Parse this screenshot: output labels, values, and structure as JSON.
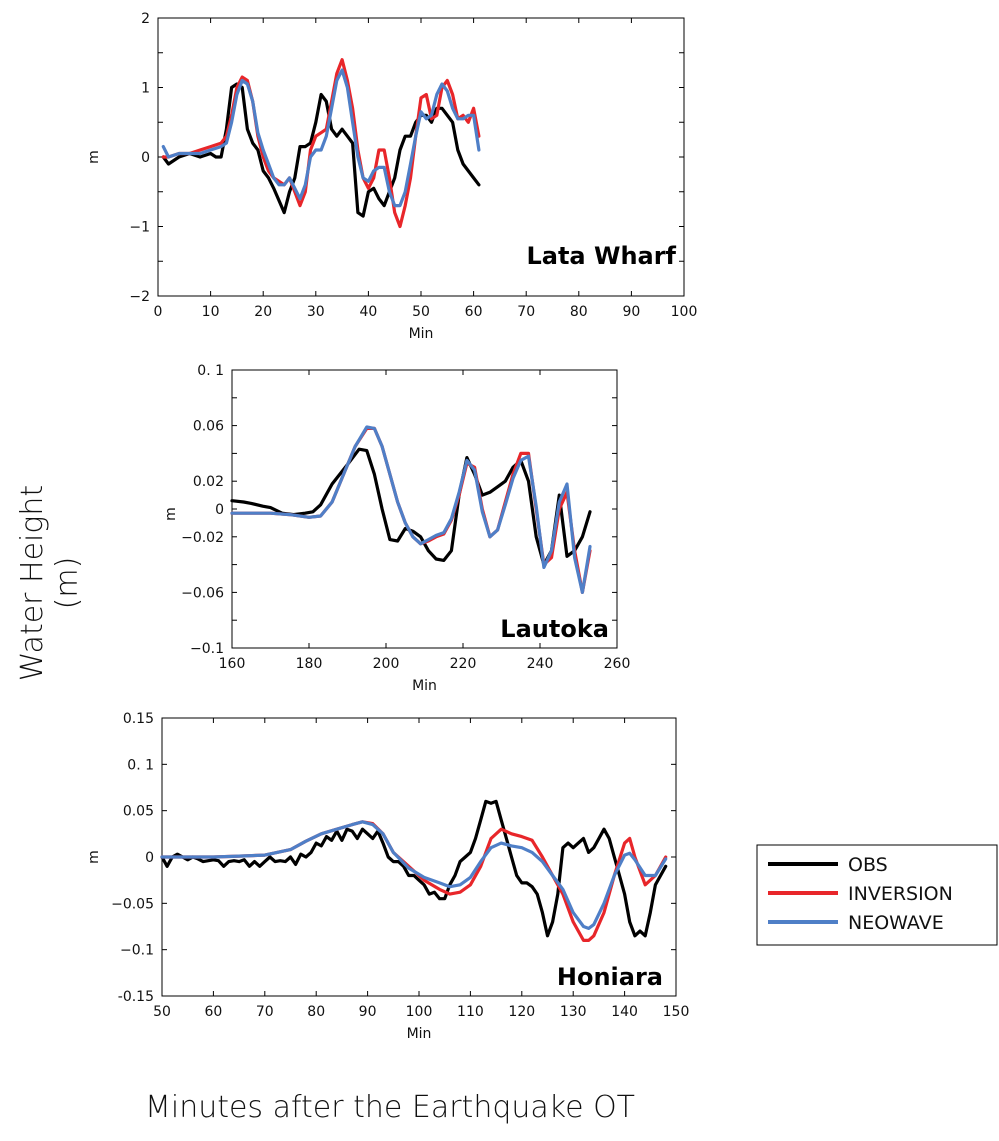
{
  "figure": {
    "ylabel": "Water Height (m)",
    "xlabel": "Minutes after the Earthquake OT"
  },
  "legend": {
    "entries": [
      {
        "name": "OBS",
        "color": "#000000"
      },
      {
        "name": "INVERSION",
        "color": "#e8262a"
      },
      {
        "name": "NEOWAVE",
        "color": "#4f7fc7"
      }
    ]
  },
  "chart_data": [
    {
      "type": "line",
      "annotation": "Lata Wharf",
      "xlabel": "Min",
      "ylabel": "m",
      "xlim": [
        0,
        100
      ],
      "ylim": [
        -2,
        2
      ],
      "xticks": [
        "0",
        "10",
        "20",
        "30",
        "40",
        "50",
        "60",
        "70",
        "80",
        "90",
        "100"
      ],
      "yticks": [
        "−2",
        "−1",
        "0",
        "1",
        "2"
      ],
      "series": [
        {
          "name": "OBS",
          "x": [
            1,
            2,
            4,
            6,
            8,
            10,
            11,
            12,
            13,
            14,
            15,
            16,
            17,
            18,
            19,
            20,
            21,
            22,
            24,
            25,
            26,
            27,
            28,
            29,
            30,
            31,
            32,
            33,
            34,
            35,
            36,
            37,
            38,
            39,
            40,
            41,
            42,
            43,
            44,
            45,
            46,
            47,
            48,
            49,
            50,
            51,
            52,
            53,
            54,
            55,
            56,
            57,
            58,
            59,
            60,
            61
          ],
          "y": [
            0,
            -0.1,
            0,
            0.05,
            0,
            0.05,
            0,
            0,
            0.4,
            1.0,
            1.05,
            1.0,
            0.4,
            0.2,
            0.1,
            -0.2,
            -0.3,
            -0.45,
            -0.8,
            -0.5,
            -0.3,
            0.15,
            0.15,
            0.2,
            0.5,
            0.9,
            0.8,
            0.4,
            0.3,
            0.4,
            0.3,
            0.2,
            -0.8,
            -0.85,
            -0.5,
            -0.45,
            -0.6,
            -0.7,
            -0.5,
            -0.3,
            0.1,
            0.3,
            0.3,
            0.5,
            0.6,
            0.6,
            0.5,
            0.7,
            0.7,
            0.6,
            0.5,
            0.1,
            -0.1,
            -0.2,
            -0.3,
            -0.4
          ]
        },
        {
          "name": "INVERSION",
          "x": [
            1,
            2,
            4,
            6,
            8,
            10,
            12,
            13,
            14,
            15,
            16,
            17,
            18,
            19,
            20,
            21,
            22,
            23,
            24,
            25,
            26,
            27,
            28,
            29,
            30,
            31,
            32,
            33,
            34,
            35,
            36,
            37,
            38,
            39,
            40,
            41,
            42,
            43,
            44,
            45,
            46,
            47,
            48,
            49,
            50,
            51,
            52,
            53,
            54,
            55,
            56,
            57,
            58,
            59,
            60,
            61
          ],
          "y": [
            0,
            0,
            0.05,
            0.05,
            0.1,
            0.15,
            0.2,
            0.3,
            0.6,
            1.0,
            1.15,
            1.1,
            0.8,
            0.3,
            0.0,
            -0.2,
            -0.3,
            -0.35,
            -0.4,
            -0.3,
            -0.5,
            -0.7,
            -0.5,
            0.1,
            0.3,
            0.35,
            0.4,
            0.8,
            1.2,
            1.4,
            1.1,
            0.7,
            0.1,
            -0.3,
            -0.45,
            -0.3,
            0.1,
            0.1,
            -0.3,
            -0.8,
            -1.0,
            -0.7,
            -0.3,
            0.3,
            0.85,
            0.9,
            0.55,
            0.6,
            1.0,
            1.1,
            0.9,
            0.55,
            0.6,
            0.5,
            0.7,
            0.3
          ]
        },
        {
          "name": "NEOWAVE",
          "x": [
            1,
            2,
            4,
            6,
            8,
            10,
            12,
            13,
            14,
            15,
            16,
            17,
            18,
            19,
            20,
            21,
            22,
            23,
            24,
            25,
            26,
            27,
            28,
            29,
            30,
            31,
            32,
            33,
            34,
            35,
            36,
            37,
            38,
            39,
            40,
            41,
            42,
            43,
            44,
            45,
            46,
            47,
            48,
            49,
            50,
            51,
            52,
            53,
            54,
            55,
            56,
            57,
            58,
            59,
            60,
            61
          ],
          "y": [
            0.15,
            0,
            0.05,
            0.05,
            0.05,
            0.1,
            0.15,
            0.2,
            0.5,
            0.9,
            1.1,
            1.05,
            0.8,
            0.35,
            0.1,
            -0.1,
            -0.3,
            -0.4,
            -0.4,
            -0.3,
            -0.45,
            -0.6,
            -0.4,
            0.0,
            0.1,
            0.1,
            0.3,
            0.7,
            1.1,
            1.25,
            1.0,
            0.5,
            0.0,
            -0.3,
            -0.35,
            -0.2,
            -0.15,
            -0.15,
            -0.5,
            -0.7,
            -0.7,
            -0.5,
            -0.1,
            0.3,
            0.65,
            0.55,
            0.6,
            0.9,
            1.05,
            0.95,
            0.7,
            0.55,
            0.55,
            0.6,
            0.6,
            0.1
          ]
        }
      ]
    },
    {
      "type": "line",
      "annotation": "Lautoka",
      "xlabel": "Min",
      "ylabel": "m",
      "xlim": [
        160,
        260
      ],
      "ylim": [
        -0.1,
        0.1
      ],
      "xticks": [
        "160",
        "180",
        "200",
        "220",
        "240",
        "260"
      ],
      "yticks": [
        "−0.1",
        "−0.06",
        "−0.02",
        "0",
        "0.02",
        "0.06",
        "0. 1"
      ],
      "series": [
        {
          "name": "OBS",
          "x": [
            160,
            163,
            165,
            168,
            170,
            173,
            176,
            179,
            181,
            183,
            186,
            190,
            193,
            195,
            197,
            199,
            201,
            203,
            205,
            207,
            209,
            211,
            213,
            215,
            217,
            219,
            221,
            223,
            225,
            227,
            229,
            231,
            233,
            235,
            237,
            239,
            241,
            243,
            245,
            247,
            249,
            251,
            253
          ],
          "y": [
            0.006,
            0.005,
            0.004,
            0.002,
            0.001,
            -0.003,
            -0.004,
            -0.003,
            -0.002,
            0.003,
            0.018,
            0.032,
            0.043,
            0.042,
            0.025,
            0.0,
            -0.022,
            -0.023,
            -0.014,
            -0.016,
            -0.02,
            -0.03,
            -0.036,
            -0.037,
            -0.03,
            0.01,
            0.037,
            0.025,
            0.01,
            0.012,
            0.016,
            0.02,
            0.03,
            0.035,
            0.02,
            -0.02,
            -0.04,
            -0.03,
            0.01,
            -0.034,
            -0.03,
            -0.02,
            -0.002
          ]
        },
        {
          "name": "INVERSION",
          "x": [
            160,
            165,
            170,
            175,
            180,
            183,
            186,
            189,
            192,
            195,
            197,
            199,
            201,
            203,
            205,
            207,
            209,
            211,
            213,
            215,
            217,
            219,
            221,
            223,
            225,
            227,
            229,
            231,
            233,
            235,
            237,
            239,
            241,
            243,
            245,
            247,
            249,
            251,
            253
          ],
          "y": [
            -0.003,
            -0.003,
            -0.003,
            -0.004,
            -0.006,
            -0.005,
            0.005,
            0.025,
            0.045,
            0.058,
            0.058,
            0.045,
            0.025,
            0.005,
            -0.01,
            -0.02,
            -0.025,
            -0.023,
            -0.02,
            -0.018,
            -0.008,
            0.01,
            0.033,
            0.03,
            0.0,
            -0.02,
            -0.015,
            0.005,
            0.025,
            0.04,
            0.04,
            0.0,
            -0.04,
            -0.035,
            0.0,
            0.012,
            -0.03,
            -0.06,
            -0.03
          ]
        },
        {
          "name": "NEOWAVE",
          "x": [
            160,
            165,
            170,
            175,
            180,
            183,
            186,
            189,
            192,
            195,
            197,
            199,
            201,
            203,
            205,
            207,
            209,
            211,
            213,
            215,
            217,
            219,
            221,
            223,
            225,
            227,
            229,
            231,
            233,
            235,
            237,
            239,
            241,
            243,
            245,
            247,
            249,
            251,
            253
          ],
          "y": [
            -0.003,
            -0.003,
            -0.003,
            -0.004,
            -0.006,
            -0.005,
            0.005,
            0.025,
            0.045,
            0.059,
            0.058,
            0.045,
            0.025,
            0.005,
            -0.01,
            -0.02,
            -0.025,
            -0.022,
            -0.019,
            -0.017,
            -0.007,
            0.012,
            0.035,
            0.028,
            -0.002,
            -0.02,
            -0.015,
            0.003,
            0.022,
            0.035,
            0.038,
            0.002,
            -0.042,
            -0.03,
            0.005,
            0.018,
            -0.035,
            -0.06,
            -0.027
          ]
        }
      ]
    },
    {
      "type": "line",
      "annotation": "Honiara",
      "xlabel": "Min",
      "ylabel": "m",
      "xlim": [
        50,
        150
      ],
      "ylim": [
        -0.15,
        0.15
      ],
      "xticks": [
        "50",
        "60",
        "70",
        "80",
        "90",
        "100",
        "110",
        "120",
        "130",
        "140",
        "150"
      ],
      "yticks": [
        "-0.15",
        "−0.1",
        "−0.05",
        "0",
        "0.05",
        "0. 1",
        "0.15"
      ],
      "series": [
        {
          "name": "OBS",
          "x": [
            50,
            51,
            52,
            53,
            54,
            55,
            56,
            57,
            58,
            59,
            60,
            61,
            62,
            63,
            64,
            65,
            66,
            67,
            68,
            69,
            70,
            71,
            72,
            73,
            74,
            75,
            76,
            77,
            78,
            79,
            80,
            81,
            82,
            83,
            84,
            85,
            86,
            87,
            88,
            89,
            90,
            91,
            92,
            93,
            94,
            95,
            96,
            97,
            98,
            99,
            100,
            101,
            102,
            103,
            104,
            105,
            106,
            107,
            108,
            109,
            110,
            111,
            112,
            113,
            114,
            115,
            116,
            117,
            118,
            119,
            120,
            121,
            122,
            123,
            124,
            125,
            126,
            127,
            128,
            129,
            130,
            131,
            132,
            133,
            134,
            135,
            136,
            137,
            138,
            139,
            140,
            141,
            142,
            143,
            144,
            145,
            146,
            147,
            148
          ],
          "y": [
            0,
            -0.01,
            0,
            0.003,
            0,
            -0.003,
            0,
            -0.002,
            -0.005,
            -0.004,
            -0.003,
            -0.004,
            -0.01,
            -0.005,
            -0.004,
            -0.005,
            -0.003,
            -0.01,
            -0.005,
            -0.01,
            -0.005,
            0.0,
            -0.005,
            -0.004,
            -0.005,
            0.0,
            -0.008,
            0.003,
            0.0,
            0.005,
            0.015,
            0.012,
            0.022,
            0.018,
            0.028,
            0.018,
            0.03,
            0.028,
            0.02,
            0.03,
            0.025,
            0.02,
            0.028,
            0.015,
            0.0,
            -0.005,
            -0.005,
            -0.01,
            -0.02,
            -0.02,
            -0.025,
            -0.03,
            -0.04,
            -0.038,
            -0.045,
            -0.045,
            -0.03,
            -0.02,
            -0.005,
            0.0,
            0.005,
            0.02,
            0.04,
            0.06,
            0.058,
            0.06,
            0.04,
            0.02,
            0.0,
            -0.02,
            -0.028,
            -0.028,
            -0.032,
            -0.04,
            -0.06,
            -0.085,
            -0.07,
            -0.04,
            0.01,
            0.015,
            0.01,
            0.015,
            0.02,
            0.005,
            0.01,
            0.02,
            0.03,
            0.02,
            0.0,
            -0.02,
            -0.04,
            -0.07,
            -0.085,
            -0.08,
            -0.085,
            -0.06,
            -0.03,
            -0.02,
            -0.01
          ]
        },
        {
          "name": "INVERSION",
          "x": [
            50,
            55,
            60,
            65,
            70,
            75,
            78,
            81,
            84,
            87,
            89,
            91,
            93,
            95,
            98,
            101,
            104,
            106,
            108,
            110,
            112,
            114,
            116,
            118,
            120,
            122,
            124,
            126,
            128,
            130,
            132,
            133,
            134,
            136,
            138,
            140,
            141,
            142,
            144,
            146,
            148
          ],
          "y": [
            0,
            0,
            0,
            0.001,
            0.002,
            0.008,
            0.017,
            0.025,
            0.03,
            0.035,
            0.038,
            0.036,
            0.025,
            0.005,
            -0.01,
            -0.025,
            -0.035,
            -0.04,
            -0.038,
            -0.03,
            -0.01,
            0.02,
            0.03,
            0.025,
            0.022,
            0.018,
            0.0,
            -0.02,
            -0.04,
            -0.07,
            -0.09,
            -0.09,
            -0.085,
            -0.06,
            -0.02,
            0.015,
            0.02,
            0.0,
            -0.03,
            -0.02,
            0.0
          ]
        },
        {
          "name": "NEOWAVE",
          "x": [
            50,
            55,
            60,
            65,
            70,
            75,
            78,
            81,
            84,
            87,
            89,
            91,
            93,
            95,
            98,
            101,
            104,
            106,
            108,
            110,
            112,
            114,
            116,
            118,
            120,
            122,
            124,
            126,
            128,
            130,
            132,
            133,
            134,
            136,
            138,
            140,
            141,
            142,
            144,
            146,
            148
          ],
          "y": [
            0,
            0,
            0,
            0.001,
            0.002,
            0.008,
            0.017,
            0.025,
            0.03,
            0.035,
            0.038,
            0.035,
            0.025,
            0.005,
            -0.012,
            -0.022,
            -0.028,
            -0.032,
            -0.03,
            -0.022,
            -0.005,
            0.01,
            0.015,
            0.012,
            0.01,
            0.005,
            -0.005,
            -0.02,
            -0.035,
            -0.06,
            -0.075,
            -0.077,
            -0.073,
            -0.05,
            -0.02,
            0.002,
            0.004,
            -0.003,
            -0.02,
            -0.02,
            -0.002
          ]
        }
      ]
    }
  ]
}
